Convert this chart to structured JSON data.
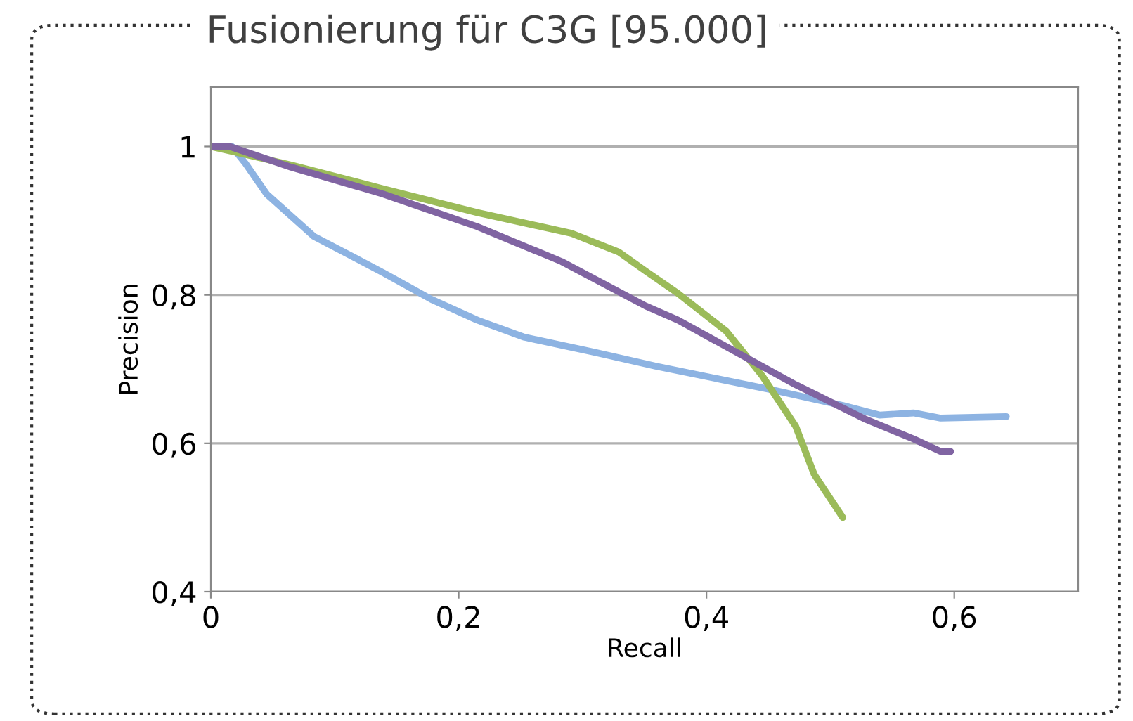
{
  "chart_data": {
    "type": "line",
    "title": "Fusionierung für C3G [95.000]",
    "xlabel": "Recall",
    "ylabel": "Precision",
    "xlim": [
      0,
      0.7
    ],
    "xticks": [
      {
        "value": 0,
        "label": "0"
      },
      {
        "value": 0.2,
        "label": "0,2"
      },
      {
        "value": 0.4,
        "label": "0,4"
      },
      {
        "value": 0.6,
        "label": "0,6"
      }
    ],
    "ylim": [
      0.4,
      1.08
    ],
    "yticks": [
      {
        "value": 0.4,
        "label": "0,4"
      },
      {
        "value": 0.6,
        "label": "0,6"
      },
      {
        "value": 0.8,
        "label": "0,8"
      },
      {
        "value": 1,
        "label": "1"
      }
    ],
    "grid": "y",
    "legend": false,
    "marker": "none",
    "line_style": "solid",
    "series": [
      {
        "color": "#8db3e2",
        "x": [
          0,
          0.017,
          0.028,
          0.045,
          0.083,
          0.139,
          0.178,
          0.215,
          0.253,
          0.309,
          0.359,
          0.453,
          0.51,
          0.54,
          0.567,
          0.589,
          0.642
        ],
        "values": [
          1,
          1.0,
          0.977,
          0.936,
          0.879,
          0.83,
          0.794,
          0.766,
          0.743,
          0.723,
          0.704,
          0.672,
          0.651,
          0.638,
          0.641,
          0.634,
          0.636
        ]
      },
      {
        "color": "#9bbb59",
        "x": [
          0,
          0.065,
          0.139,
          0.215,
          0.291,
          0.329,
          0.351,
          0.377,
          0.416,
          0.445,
          0.472,
          0.487,
          0.51
        ],
        "values": [
          1,
          0.975,
          0.943,
          0.911,
          0.883,
          0.858,
          0.832,
          0.802,
          0.751,
          0.691,
          0.623,
          0.558,
          0.5
        ]
      },
      {
        "color": "#8064a2",
        "x": [
          0,
          0.015,
          0.065,
          0.139,
          0.215,
          0.283,
          0.351,
          0.377,
          0.472,
          0.529,
          0.567,
          0.589,
          0.597
        ],
        "values": [
          1,
          1.0,
          0.972,
          0.936,
          0.892,
          0.845,
          0.785,
          0.766,
          0.679,
          0.632,
          0.606,
          0.589,
          0.589
        ]
      }
    ]
  }
}
